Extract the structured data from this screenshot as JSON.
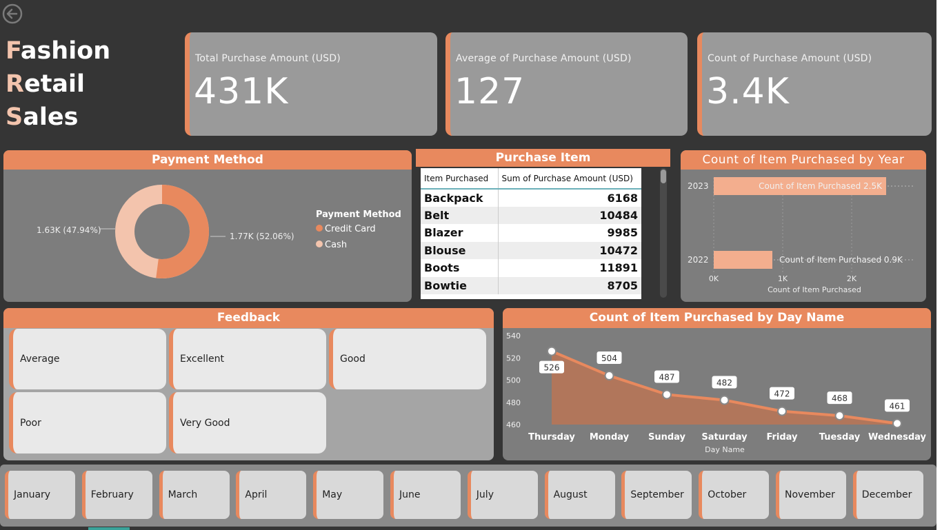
{
  "title": {
    "line1_cap": "F",
    "line1_rest": "ashion ",
    "line1_cap2": "R",
    "line1_rest2": "etail",
    "line2_cap": "S",
    "line2_rest": "ales"
  },
  "colors": {
    "accent": "#e8895e",
    "light_accent": "#f3c4ad",
    "bg": "#353535",
    "panel": "#7d7d7d",
    "kpi": "#9a9a9a"
  },
  "kpis": [
    {
      "label": "Total Purchase Amount (USD)",
      "value": "431K"
    },
    {
      "label": "Average of Purchase Amount (USD)",
      "value": "127"
    },
    {
      "label": "Count of Purchase Amount (USD)",
      "value": "3.4K"
    }
  ],
  "payment": {
    "title": "Payment Method",
    "legend_title": "Payment Method",
    "legend": [
      "Credit Card",
      "Cash"
    ],
    "label_right": "1.77K (52.06%)",
    "label_left": "1.63K (47.94%)"
  },
  "purchase_item": {
    "title": "Purchase Item",
    "columns": [
      "Item Purchased",
      "Sum of Purchase Amount (USD)"
    ],
    "rows": [
      [
        "Backpack",
        "6168"
      ],
      [
        "Belt",
        "10484"
      ],
      [
        "Blazer",
        "9985"
      ],
      [
        "Blouse",
        "10472"
      ],
      [
        "Boots",
        "11891"
      ],
      [
        "Bowtie",
        "8705"
      ]
    ]
  },
  "feedback": {
    "title": "Feedback",
    "options": [
      "Average",
      "Excellent",
      "Good",
      "Poor",
      "Very Good"
    ]
  },
  "months": [
    "January",
    "February",
    "March",
    "April",
    "May",
    "June",
    "July",
    "August",
    "September",
    "October",
    "November",
    "December"
  ],
  "chart_data": [
    {
      "type": "pie",
      "title": "Payment Method",
      "categories": [
        "Credit Card",
        "Cash"
      ],
      "values": [
        1770,
        1630
      ],
      "labels": [
        "1.77K (52.06%)",
        "1.63K (47.94%)"
      ],
      "donut": true,
      "legend": "right"
    },
    {
      "type": "bar",
      "orientation": "horizontal",
      "title": "Count of Item Purchased by Year",
      "categories": [
        "2023",
        "2022"
      ],
      "values": [
        2500,
        850
      ],
      "data_labels": [
        "Count of Item Purchased 2.5K",
        "Count of Item Purchased 0.9K"
      ],
      "xlabel": "Count of Item Purchased",
      "xticks": [
        "0K",
        "1K",
        "2K"
      ],
      "xlim": [
        0,
        2900
      ]
    },
    {
      "type": "area",
      "title": "Count of Item Purchased by Day Name",
      "categories": [
        "Thursday",
        "Monday",
        "Sunday",
        "Saturday",
        "Friday",
        "Tuesday",
        "Wednesday"
      ],
      "values": [
        526,
        504,
        487,
        482,
        472,
        468,
        461
      ],
      "xlabel": "Day Name",
      "yticks": [
        "540",
        "520",
        "500",
        "480",
        "460"
      ],
      "ylim": [
        460,
        540
      ]
    }
  ]
}
